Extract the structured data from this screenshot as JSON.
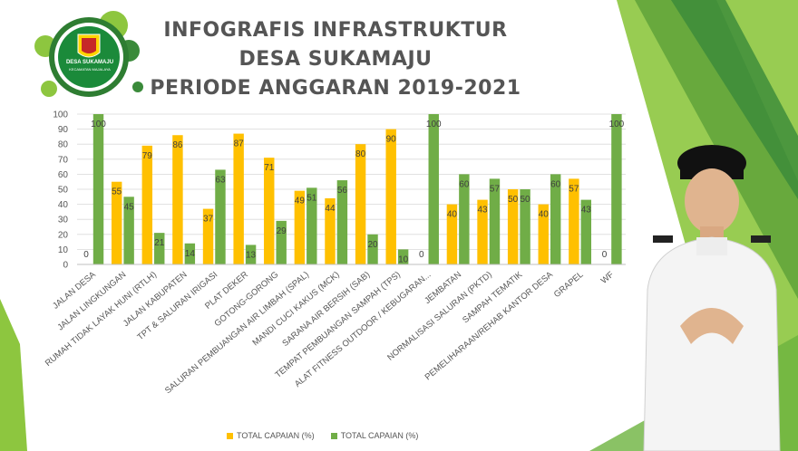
{
  "header": {
    "title_lines": [
      "INFOGRAFIS INFRASTRUKTUR",
      "DESA SUKAMAJU",
      "PERIODE ANGGARAN 2019-2021"
    ],
    "logo_text": "DESA SUKAMAJU",
    "logo_subtext": "KECAMATAN MAJALAYA"
  },
  "colors": {
    "series_yellow": "#FFC000",
    "series_green": "#70AD47",
    "accent_green": "#8DC63F",
    "dark_green": "#3A8A3A"
  },
  "chart_data": {
    "type": "bar",
    "categories": [
      "JALAN DESA",
      "JALAN LINGKUNGAN",
      "RUMAH TIDAK LAYAK HUNI (RTLH)",
      "JALAN KABUPATEN",
      "TPT & SALURAN IRIGASI",
      "PLAT DEKER",
      "GOTONG-GORONG",
      "SALURAN PEMBUANGAN AIR LIMBAH (SPAL)",
      "MANDI CUCI KAKUS (MCK)",
      "SARANA AIR BERSIH (SAB)",
      "TEMPAT PEMBUANGAN SAMPAH (TPS)",
      "ALAT FITNESS OUTDOOR / KEBUGARAN...",
      "JEMBATAN",
      "NORMALISASI SALURAN (PKTD)",
      "SAMPAH TEMATIK",
      "PEMELIHARAAN/REHAB KANTOR DESA",
      "GRAPEL",
      "WF"
    ],
    "series": [
      {
        "name": "TOTAL CAPAIAN (%)",
        "color": "#FFC000",
        "values": [
          0,
          55,
          79,
          86,
          37,
          87,
          71,
          49,
          44,
          80,
          90,
          0,
          40,
          43,
          50,
          40,
          57,
          0
        ]
      },
      {
        "name": "TOTAL CAPAIAN (%)",
        "color": "#70AD47",
        "values": [
          100,
          45,
          21,
          14,
          63,
          13,
          29,
          51,
          56,
          20,
          10,
          100,
          60,
          57,
          50,
          60,
          43,
          100
        ]
      }
    ],
    "ylim": [
      0,
      100
    ],
    "yticks": [
      0,
      10,
      20,
      30,
      40,
      50,
      60,
      70,
      80,
      90,
      100
    ],
    "grid": true,
    "legend": "bottom"
  }
}
